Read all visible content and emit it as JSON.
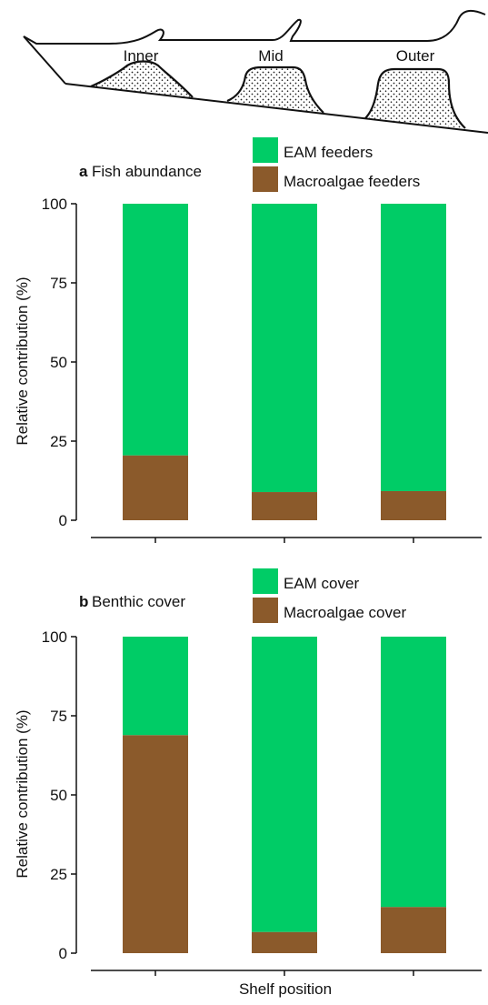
{
  "figure": {
    "shelf_labels": [
      "Inner",
      "Mid",
      "Outer"
    ]
  },
  "chart_data": [
    {
      "type": "bar",
      "stacked": true,
      "panel_letter": "a",
      "title": "Fish abundance",
      "categories": [
        "",
        "",
        ""
      ],
      "series": [
        {
          "name": "Macroalgae feeders",
          "values": [
            20.5,
            8.9,
            9.2
          ],
          "color": "#8B5A2B"
        },
        {
          "name": "EAM feeders",
          "values": [
            79.5,
            91.1,
            90.8
          ],
          "color": "#00CC66"
        }
      ],
      "legend_order": [
        "EAM feeders",
        "Macroalgae feeders"
      ],
      "legend_position": "top-right",
      "ylabel": "Relative contribution (%)",
      "xlabel": "",
      "ylim": [
        0,
        100
      ],
      "yticks": [
        0,
        25,
        50,
        75,
        100
      ],
      "grid": false
    },
    {
      "type": "bar",
      "stacked": true,
      "panel_letter": "b",
      "title": "Benthic cover",
      "categories": [
        "",
        "",
        ""
      ],
      "series": [
        {
          "name": "Macroalgae cover",
          "values": [
            68.9,
            6.7,
            14.6
          ],
          "color": "#8B5A2B"
        },
        {
          "name": "EAM cover",
          "values": [
            31.1,
            93.3,
            85.4
          ],
          "color": "#00CC66"
        }
      ],
      "legend_order": [
        "EAM cover",
        "Macroalgae cover"
      ],
      "legend_position": "top-right",
      "ylabel": "Relative contribution (%)",
      "xlabel": "Shelf position",
      "ylim": [
        0,
        100
      ],
      "yticks": [
        0,
        25,
        50,
        75,
        100
      ],
      "grid": false
    }
  ]
}
